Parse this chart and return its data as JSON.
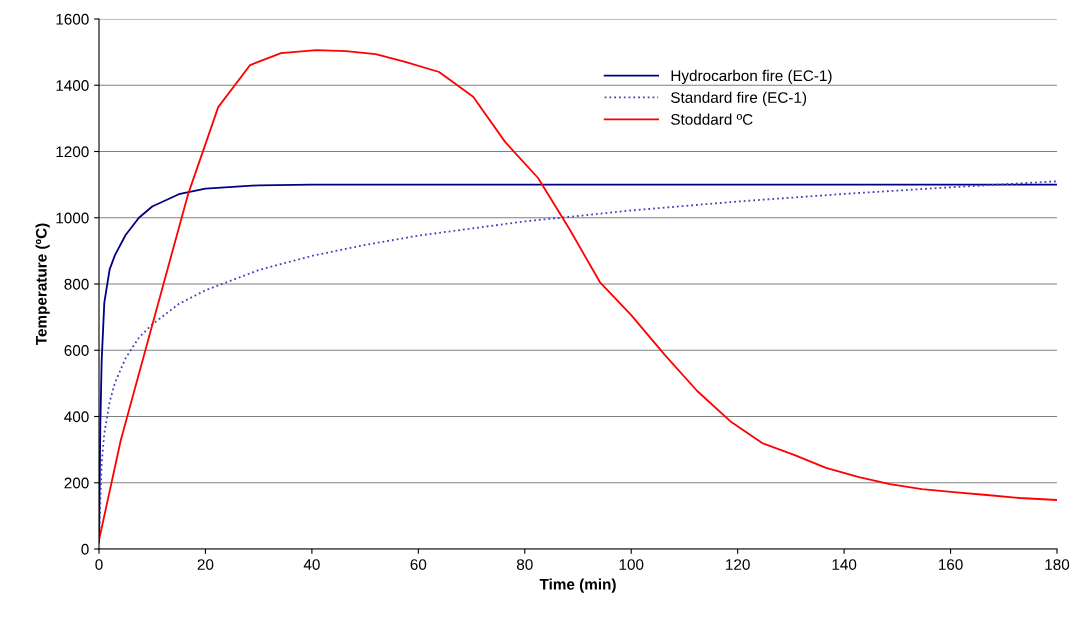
{
  "chart_data": {
    "type": "line",
    "xlabel": "Time (min)",
    "ylabel": "Temperature (ºC)",
    "xlim": [
      0,
      180
    ],
    "xticks": [
      0,
      20,
      40,
      60,
      80,
      100,
      120,
      140,
      160,
      180
    ],
    "ylim": [
      0,
      1600
    ],
    "yticks": [
      0,
      200,
      400,
      600,
      800,
      1000,
      1200,
      1400,
      1600
    ],
    "grid": "y",
    "legend": "top right",
    "marker": "none",
    "series": [
      {
        "name": "Hydrocarbon fire (EC-1)",
        "color": "#000080",
        "line_style": "solid",
        "x": [
          0,
          0.25,
          0.5,
          1,
          2,
          3,
          5,
          7.5,
          10,
          15,
          20,
          30,
          40,
          180
        ],
        "values": [
          20,
          373,
          568,
          744,
          844,
          887,
          948,
          1000,
          1034,
          1071,
          1088,
          1098,
          1100,
          1100
        ]
      },
      {
        "name": "Standard fire (EC-1)",
        "color": "#4040c0",
        "line_style": "dotted",
        "x": [
          0,
          0.5,
          1,
          2,
          3,
          5,
          7.5,
          10,
          15,
          20,
          30,
          40,
          50,
          60,
          80,
          100,
          120,
          140,
          160,
          180
        ],
        "values": [
          20,
          261,
          349,
          444,
          502,
          576,
          638,
          678,
          740,
          781,
          842,
          885,
          918,
          946,
          989,
          1022,
          1049,
          1072,
          1092,
          1110
        ]
      },
      {
        "name": "Stoddard ºC",
        "color": "#ff0000",
        "line_style": "solid",
        "x": [
          0,
          4.1,
          16.7,
          22.4,
          28.4,
          34.2,
          40.8,
          46.4,
          52,
          57.7,
          63.9,
          70.3,
          76.3,
          82.5,
          88.5,
          94.1,
          100,
          106.3,
          112.4,
          118.6,
          124.6,
          130.6,
          136.6,
          142.8,
          148.6,
          154.6,
          160.6,
          166.8,
          173,
          180
        ],
        "values": [
          27,
          329,
          1069,
          1334,
          1461,
          1497,
          1506,
          1503,
          1494,
          1470,
          1440,
          1365,
          1229,
          1120,
          963,
          806,
          706,
          586,
          477,
          386,
          320,
          284,
          245,
          217,
          196,
          181,
          172,
          163,
          154,
          148
        ]
      }
    ]
  }
}
